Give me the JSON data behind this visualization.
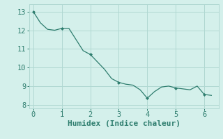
{
  "x": [
    0,
    0.25,
    0.5,
    0.75,
    1.0,
    1.25,
    1.5,
    1.75,
    2.0,
    2.25,
    2.5,
    2.75,
    3.0,
    3.25,
    3.5,
    3.75,
    4.0,
    4.25,
    4.5,
    4.75,
    5.0,
    5.25,
    5.5,
    5.75,
    6.0,
    6.25
  ],
  "y": [
    13.0,
    12.4,
    12.05,
    12.0,
    12.1,
    12.1,
    11.5,
    10.9,
    10.7,
    10.3,
    9.9,
    9.4,
    9.2,
    9.1,
    9.05,
    8.8,
    8.35,
    8.7,
    8.95,
    9.0,
    8.9,
    8.85,
    8.8,
    9.0,
    8.55,
    8.5
  ],
  "marker_x_indices": [
    0,
    4,
    8,
    12,
    16,
    20,
    24
  ],
  "line_color": "#2e7d6e",
  "marker_color": "#2e7d6e",
  "bg_color": "#d4f0eb",
  "grid_color": "#b0d8d2",
  "xlabel": "Humidex (Indice chaleur)",
  "xlim": [
    -0.15,
    6.5
  ],
  "ylim": [
    7.8,
    13.4
  ],
  "yticks": [
    8,
    9,
    10,
    11,
    12,
    13
  ],
  "xticks": [
    0,
    1,
    2,
    3,
    4,
    5,
    6
  ],
  "font_color": "#2e7d6e",
  "font_size": 7.5,
  "xlabel_size": 8.0
}
